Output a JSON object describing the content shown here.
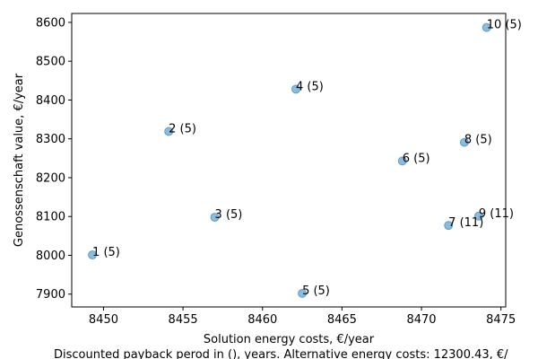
{
  "chart_data": {
    "type": "scatter",
    "title": "",
    "xlabel": "Solution energy costs, €/year",
    "ylabel": "Genossenschaft value, €/year",
    "footnote": "Discounted payback perod in (), years. Alternative energy costs: 12300.43, €/",
    "xlim": [
      8448.0,
      8475.3
    ],
    "ylim": [
      7867,
      8623
    ],
    "xticks": [
      8450,
      8455,
      8460,
      8465,
      8470,
      8475
    ],
    "yticks": [
      7900,
      8000,
      8100,
      8200,
      8300,
      8400,
      8500,
      8600
    ],
    "grid": false,
    "marker_color": "#1f77b4",
    "marker_alpha": 0.5,
    "points": [
      {
        "x": 8449.3,
        "y": 8001,
        "label": "1 (5)"
      },
      {
        "x": 8454.1,
        "y": 8319,
        "label": "2 (5)"
      },
      {
        "x": 8457.0,
        "y": 8098,
        "label": "3 (5)"
      },
      {
        "x": 8462.1,
        "y": 8428,
        "label": "4 (5)"
      },
      {
        "x": 8462.5,
        "y": 7902,
        "label": "5 (5)"
      },
      {
        "x": 8468.8,
        "y": 8243,
        "label": "6 (5)"
      },
      {
        "x": 8471.7,
        "y": 8077,
        "label": "7 (11)"
      },
      {
        "x": 8472.7,
        "y": 8291,
        "label": "8 (5)"
      },
      {
        "x": 8473.6,
        "y": 8101,
        "label": "9 (11)"
      },
      {
        "x": 8474.1,
        "y": 8587,
        "label": "10 (5)"
      }
    ]
  }
}
